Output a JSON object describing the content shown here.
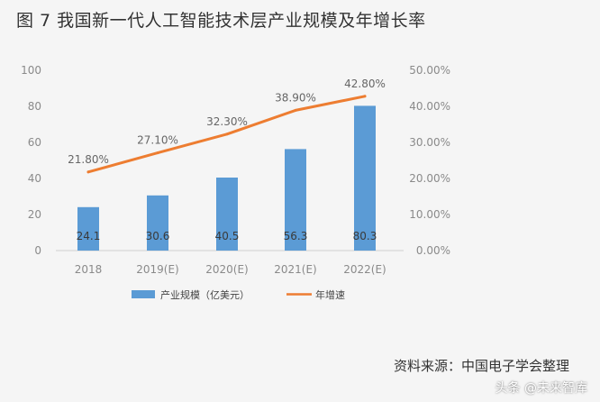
{
  "title": "图 7  我国新一代人工智能技术层产业规模及年增长率",
  "source": "资料来源：中国电子学会整理",
  "watermark": "头条 @未来智库",
  "colors": {
    "bar": "#5b9bd5",
    "line": "#ed7d31"
  },
  "chart_data": {
    "type": "bar",
    "categories": [
      "2018",
      "2019(E)",
      "2020(E)",
      "2021(E)",
      "2022(E)"
    ],
    "series": [
      {
        "name": "产业规模（亿美元）",
        "type": "bar",
        "axis": "left",
        "values": [
          24.1,
          30.6,
          40.5,
          56.3,
          80.3
        ],
        "labels": [
          "24.1",
          "30.6",
          "40.5",
          "56.3",
          "80.3"
        ]
      },
      {
        "name": "年增速",
        "type": "line",
        "axis": "right",
        "values": [
          21.8,
          27.1,
          32.3,
          38.9,
          42.8
        ],
        "labels": [
          "21.80%",
          "27.10%",
          "32.30%",
          "38.90%",
          "42.80%"
        ]
      }
    ],
    "y_left": {
      "ylim": [
        0,
        100
      ],
      "ticks": [
        "0",
        "20",
        "40",
        "60",
        "80",
        "100"
      ]
    },
    "y_right": {
      "ylim": [
        0,
        50
      ],
      "ticks": [
        "0.00%",
        "10.00%",
        "20.00%",
        "30.00%",
        "40.00%",
        "50.00%"
      ]
    },
    "legend_position": "bottom",
    "grid": false
  }
}
